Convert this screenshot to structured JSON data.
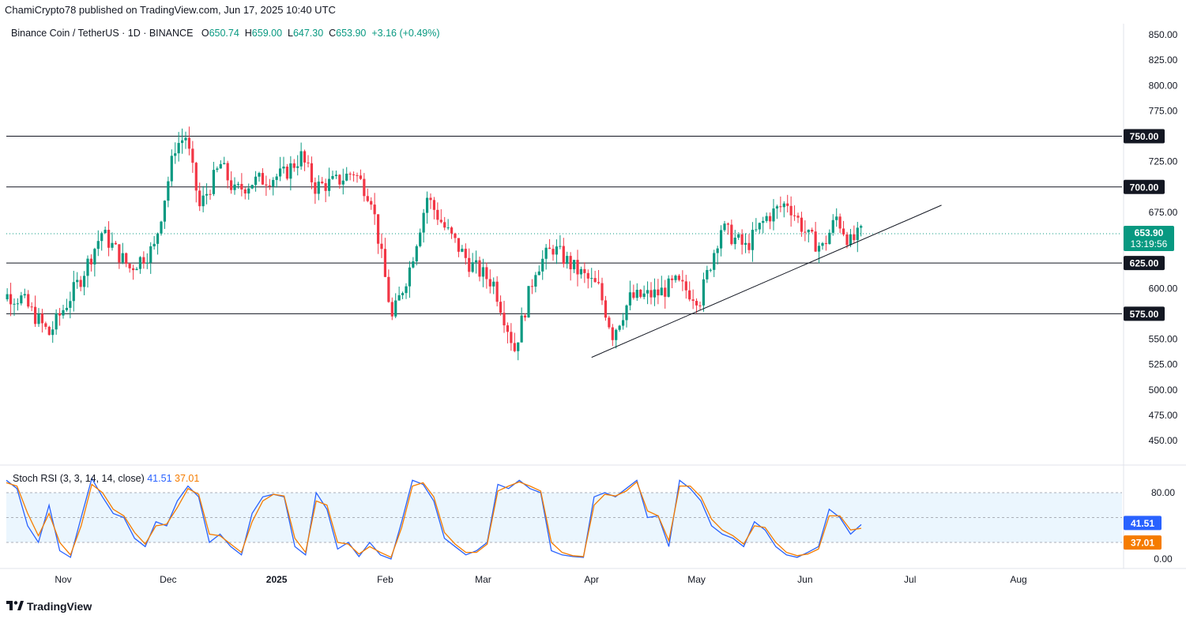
{
  "header": {
    "published_by": "ChamiCrypto78 published on TradingView.com, Jun 17, 2025 10:40 UTC"
  },
  "symbol": {
    "name": "Binance Coin / TetherUS · 1D · BINANCE",
    "open_label": "O",
    "open": "650.74",
    "high_label": "H",
    "high": "659.00",
    "low_label": "L",
    "low": "647.30",
    "close_label": "C",
    "close": "653.90",
    "change": "+3.16 (+0.49%)"
  },
  "price_badge": {
    "price": "653.90",
    "countdown": "13:19:56"
  },
  "stoch": {
    "title": "Stoch RSI (3, 3, 14, 14, close)",
    "k_value": "41.51",
    "d_value": "37.01"
  },
  "footer": {
    "brand": "TradingView",
    "logo_icon": "tradingview-logo-icon"
  },
  "colors": {
    "up": "#089981",
    "down": "#f23645",
    "k_line": "#2962ff",
    "d_line": "#f57c00",
    "band_fill": "#e3f2fd",
    "badge_bg": "#089981"
  },
  "chart_data": [
    {
      "type": "candlestick",
      "title": "Binance Coin / TetherUS · 1D · BINANCE",
      "y_ticks": [
        "850.00",
        "825.00",
        "800.00",
        "775.00",
        "725.00",
        "675.00",
        "600.00",
        "550.00",
        "525.00",
        "500.00",
        "475.00",
        "450.00"
      ],
      "ylim": [
        430,
        860
      ],
      "x_ticks": [
        "Nov",
        "Dec",
        "2025",
        "Feb",
        "Mar",
        "Apr",
        "May",
        "Jun",
        "Jul",
        "Aug"
      ],
      "horizontal_levels": [
        {
          "value": 750,
          "label": "750.00"
        },
        {
          "value": 700,
          "label": "700.00"
        },
        {
          "value": 625,
          "label": "625.00"
        },
        {
          "value": 575,
          "label": "575.00"
        }
      ],
      "trendline": {
        "from": [
          "2025-04-01",
          532
        ],
        "to": [
          "2025-07-10",
          682
        ]
      },
      "current_price": 653.9,
      "approx_close_path": [
        [
          "2024-10-10",
          598
        ],
        [
          "2024-10-20",
          590
        ],
        [
          "2024-10-28",
          555
        ],
        [
          "2024-11-06",
          610
        ],
        [
          "2024-11-12",
          655
        ],
        [
          "2024-11-20",
          620
        ],
        [
          "2024-11-27",
          640
        ],
        [
          "2024-12-03",
          740
        ],
        [
          "2024-12-06",
          750
        ],
        [
          "2024-12-10",
          680
        ],
        [
          "2024-12-16",
          722
        ],
        [
          "2024-12-20",
          695
        ],
        [
          "2024-12-25",
          705
        ],
        [
          "2025-01-03",
          712
        ],
        [
          "2025-01-08",
          730
        ],
        [
          "2025-01-12",
          700
        ],
        [
          "2025-01-18",
          705
        ],
        [
          "2025-01-23",
          715
        ],
        [
          "2025-01-28",
          690
        ],
        [
          "2025-02-03",
          570
        ],
        [
          "2025-02-08",
          620
        ],
        [
          "2025-02-13",
          690
        ],
        [
          "2025-02-18",
          660
        ],
        [
          "2025-02-25",
          625
        ],
        [
          "2025-03-04",
          605
        ],
        [
          "2025-03-10",
          540
        ],
        [
          "2025-03-16",
          620
        ],
        [
          "2025-03-21",
          640
        ],
        [
          "2025-03-27",
          620
        ],
        [
          "2025-04-03",
          600
        ],
        [
          "2025-04-07",
          555
        ],
        [
          "2025-04-12",
          590
        ],
        [
          "2025-04-20",
          595
        ],
        [
          "2025-04-25",
          605
        ],
        [
          "2025-05-02",
          590
        ],
        [
          "2025-05-08",
          660
        ],
        [
          "2025-05-15",
          640
        ],
        [
          "2025-05-21",
          670
        ],
        [
          "2025-05-27",
          685
        ],
        [
          "2025-06-02",
          650
        ],
        [
          "2025-06-06",
          640
        ],
        [
          "2025-06-10",
          670
        ],
        [
          "2025-06-14",
          645
        ],
        [
          "2025-06-17",
          654
        ]
      ]
    },
    {
      "type": "line",
      "title": "Stoch RSI (3, 3, 14, 14, close)",
      "y_ticks": [
        "80.00",
        "0.00"
      ],
      "ylim": [
        -5,
        100
      ],
      "band": [
        20,
        80
      ],
      "series": [
        {
          "name": "K",
          "color": "#2962ff",
          "last": 41.51,
          "values": [
            95,
            85,
            40,
            20,
            65,
            10,
            2,
            50,
            97,
            75,
            55,
            50,
            25,
            15,
            45,
            40,
            70,
            88,
            75,
            20,
            30,
            15,
            5,
            55,
            75,
            78,
            75,
            15,
            5,
            80,
            60,
            12,
            20,
            3,
            20,
            5,
            0,
            45,
            95,
            90,
            70,
            25,
            15,
            5,
            10,
            20,
            90,
            85,
            95,
            85,
            80,
            10,
            5,
            3,
            2,
            75,
            80,
            75,
            85,
            95,
            50,
            52,
            15,
            95,
            85,
            70,
            40,
            30,
            25,
            15,
            45,
            35,
            15,
            5,
            2,
            8,
            15,
            60,
            50,
            30,
            41.51
          ]
        },
        {
          "name": "D",
          "color": "#f57c00",
          "last": 37.01,
          "values": [
            92,
            88,
            55,
            28,
            55,
            20,
            5,
            40,
            90,
            80,
            60,
            52,
            32,
            18,
            40,
            42,
            62,
            85,
            78,
            30,
            28,
            18,
            8,
            45,
            70,
            78,
            76,
            25,
            8,
            70,
            65,
            20,
            18,
            6,
            15,
            8,
            2,
            38,
            88,
            92,
            75,
            32,
            18,
            8,
            8,
            18,
            82,
            88,
            93,
            88,
            82,
            20,
            8,
            4,
            3,
            65,
            78,
            76,
            82,
            93,
            58,
            52,
            22,
            88,
            88,
            75,
            48,
            35,
            28,
            18,
            40,
            38,
            20,
            8,
            4,
            6,
            12,
            52,
            52,
            35,
            37.01
          ]
        }
      ]
    }
  ]
}
